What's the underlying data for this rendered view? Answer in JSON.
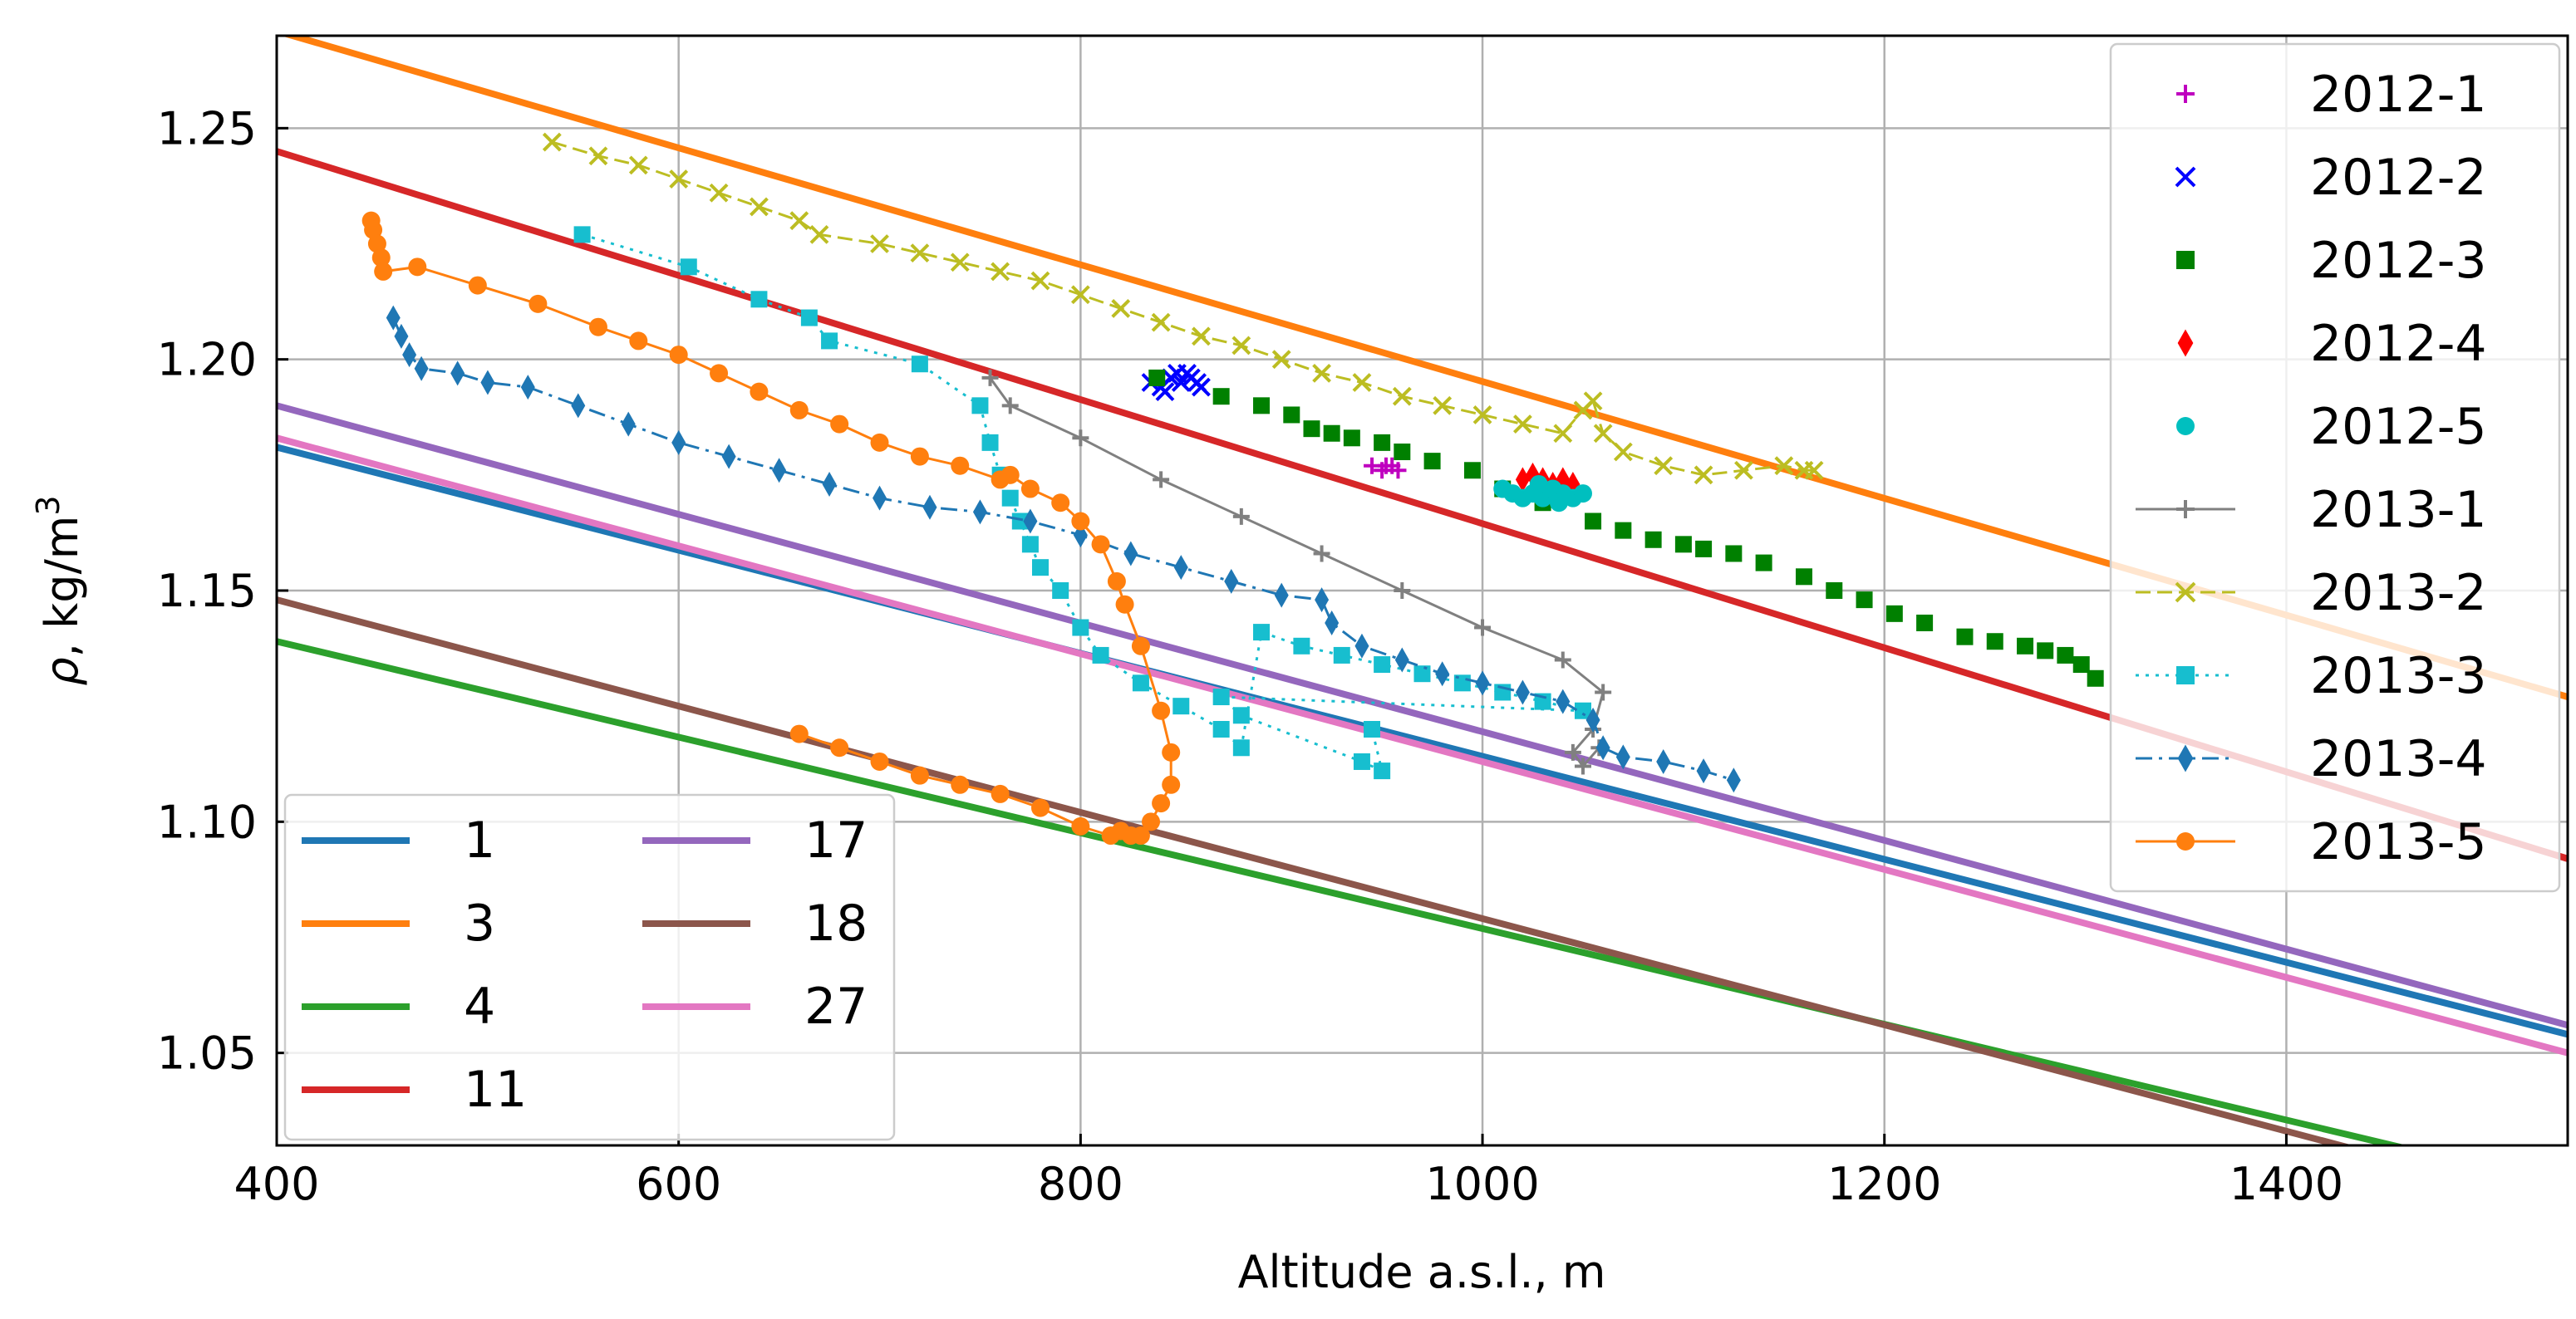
{
  "chart_data": {
    "type": "line",
    "xlabel": "Altitude a.s.l., m",
    "ylabel_prefix": "ρ",
    "ylabel_suffix": ", kg/m",
    "ylabel_sup": "3",
    "xlim": [
      400,
      1540
    ],
    "ylim": [
      1.03,
      1.27
    ],
    "grid": true,
    "x_ticks": [
      400,
      600,
      800,
      1000,
      1200,
      1400
    ],
    "y_ticks": [
      1.05,
      1.1,
      1.15,
      1.2,
      1.25
    ],
    "x_tick_labels": [
      "400",
      "600",
      "800",
      "1000",
      "1200",
      "1400"
    ],
    "y_tick_labels": [
      "1.05",
      "1.10",
      "1.15",
      "1.20",
      "1.25"
    ],
    "reference_lines": [
      {
        "name": "1",
        "color": "#1f77b4",
        "x": [
          400,
          1540
        ],
        "y": [
          1.181,
          1.054
        ]
      },
      {
        "name": "3",
        "color": "#ff7f0e",
        "x": [
          400,
          1540
        ],
        "y": [
          1.271,
          1.127
        ]
      },
      {
        "name": "4",
        "color": "#2ca02c",
        "x": [
          400,
          1540
        ],
        "y": [
          1.139,
          1.021
        ]
      },
      {
        "name": "11",
        "color": "#d62728",
        "x": [
          400,
          1540
        ],
        "y": [
          1.245,
          1.092
        ]
      },
      {
        "name": "17",
        "color": "#9467bd",
        "x": [
          400,
          1540
        ],
        "y": [
          1.19,
          1.056
        ]
      },
      {
        "name": "18",
        "color": "#8c564b",
        "x": [
          400,
          1540
        ],
        "y": [
          1.148,
          1.017
        ]
      },
      {
        "name": "27",
        "color": "#e377c2",
        "x": [
          400,
          1540
        ],
        "y": [
          1.183,
          1.05
        ]
      }
    ],
    "series": [
      {
        "name": "2012-1",
        "color": "#bf00bf",
        "marker": "plus",
        "line": "none",
        "x": [
          945,
          950,
          955,
          958,
          952
        ],
        "y": [
          1.177,
          1.176,
          1.177,
          1.176,
          1.177
        ]
      },
      {
        "name": "2012-2",
        "color": "#0000ff",
        "marker": "x",
        "line": "none",
        "x": [
          835,
          840,
          845,
          850,
          855,
          860,
          842,
          853,
          848,
          858
        ],
        "y": [
          1.195,
          1.194,
          1.196,
          1.195,
          1.196,
          1.194,
          1.193,
          1.197,
          1.197,
          1.195
        ]
      },
      {
        "name": "2012-3",
        "color": "#008000",
        "marker": "square",
        "line": "none",
        "x": [
          838,
          870,
          890,
          905,
          915,
          925,
          935,
          950,
          960,
          975,
          995,
          1010,
          1030,
          1055,
          1070,
          1085,
          1100,
          1110,
          1125,
          1140,
          1160,
          1175,
          1190,
          1205,
          1220,
          1240,
          1255,
          1270,
          1280,
          1290,
          1298,
          1305
        ],
        "y": [
          1.196,
          1.192,
          1.19,
          1.188,
          1.185,
          1.184,
          1.183,
          1.182,
          1.18,
          1.178,
          1.176,
          1.172,
          1.169,
          1.165,
          1.163,
          1.161,
          1.16,
          1.159,
          1.158,
          1.156,
          1.153,
          1.15,
          1.148,
          1.145,
          1.143,
          1.14,
          1.139,
          1.138,
          1.137,
          1.136,
          1.134,
          1.131
        ]
      },
      {
        "name": "2012-4",
        "color": "#ff0000",
        "marker": "diamond",
        "line": "none",
        "x": [
          1020,
          1025,
          1030,
          1035,
          1040,
          1045
        ],
        "y": [
          1.174,
          1.175,
          1.174,
          1.173,
          1.174,
          1.173
        ]
      },
      {
        "name": "2012-5",
        "color": "#00bfbf",
        "marker": "circle",
        "line": "none",
        "x": [
          1010,
          1015,
          1020,
          1025,
          1030,
          1035,
          1040,
          1045,
          1050,
          1028,
          1038
        ],
        "y": [
          1.172,
          1.171,
          1.17,
          1.171,
          1.17,
          1.172,
          1.171,
          1.17,
          1.171,
          1.173,
          1.169
        ]
      },
      {
        "name": "2013-1",
        "color": "#808080",
        "marker": "plus",
        "line": "solid",
        "x": [
          755,
          765,
          800,
          840,
          880,
          920,
          960,
          1000,
          1040,
          1060,
          1055,
          1045,
          1050,
          1058
        ],
        "y": [
          1.196,
          1.19,
          1.183,
          1.174,
          1.166,
          1.158,
          1.15,
          1.142,
          1.135,
          1.128,
          1.12,
          1.115,
          1.112,
          1.116
        ]
      },
      {
        "name": "2013-2",
        "color": "#bcbd22",
        "marker": "x",
        "line": "dashed",
        "x": [
          537,
          560,
          580,
          600,
          620,
          640,
          660,
          670,
          700,
          720,
          740,
          760,
          780,
          800,
          820,
          840,
          860,
          880,
          900,
          920,
          940,
          960,
          980,
          1000,
          1020,
          1040,
          1050,
          1055,
          1060,
          1070,
          1090,
          1110,
          1130,
          1150,
          1160,
          1165
        ],
        "y": [
          1.247,
          1.244,
          1.242,
          1.239,
          1.236,
          1.233,
          1.23,
          1.227,
          1.225,
          1.223,
          1.221,
          1.219,
          1.217,
          1.214,
          1.211,
          1.208,
          1.205,
          1.203,
          1.2,
          1.197,
          1.195,
          1.192,
          1.19,
          1.188,
          1.186,
          1.184,
          1.189,
          1.191,
          1.184,
          1.18,
          1.177,
          1.175,
          1.176,
          1.177,
          1.176,
          1.176
        ]
      },
      {
        "name": "2013-3",
        "color": "#17becf",
        "marker": "square",
        "line": "dotted",
        "x": [
          552,
          605,
          640,
          665,
          675,
          720,
          750,
          755,
          760,
          765,
          770,
          775,
          780,
          790,
          800,
          810,
          830,
          850,
          870,
          880,
          890,
          910,
          930,
          950,
          970,
          990,
          1010,
          1030,
          1050,
          870,
          880,
          940,
          950,
          945
        ],
        "y": [
          1.227,
          1.22,
          1.213,
          1.209,
          1.204,
          1.199,
          1.19,
          1.182,
          1.175,
          1.17,
          1.165,
          1.16,
          1.155,
          1.15,
          1.142,
          1.136,
          1.13,
          1.125,
          1.12,
          1.116,
          1.141,
          1.138,
          1.136,
          1.134,
          1.132,
          1.13,
          1.128,
          1.126,
          1.124,
          1.127,
          1.123,
          1.113,
          1.111,
          1.12
        ]
      },
      {
        "name": "2013-4",
        "color": "#1f77b4",
        "marker": "diamond",
        "line": "dashdot",
        "x": [
          458,
          462,
          466,
          472,
          490,
          505,
          525,
          550,
          575,
          600,
          625,
          650,
          675,
          700,
          725,
          750,
          775,
          800,
          825,
          850,
          875,
          900,
          920,
          925,
          940,
          960,
          980,
          1000,
          1020,
          1040,
          1055,
          1060,
          1070,
          1090,
          1110,
          1125
        ],
        "y": [
          1.209,
          1.205,
          1.201,
          1.198,
          1.197,
          1.195,
          1.194,
          1.19,
          1.186,
          1.182,
          1.179,
          1.176,
          1.173,
          1.17,
          1.168,
          1.167,
          1.165,
          1.162,
          1.158,
          1.155,
          1.152,
          1.149,
          1.148,
          1.143,
          1.138,
          1.135,
          1.132,
          1.13,
          1.128,
          1.126,
          1.122,
          1.116,
          1.114,
          1.113,
          1.111,
          1.109
        ]
      },
      {
        "name": "2013-5",
        "color": "#ff7f0e",
        "marker": "circle",
        "line": "solid",
        "x": [
          447,
          448,
          450,
          452,
          453,
          470,
          500,
          530,
          560,
          580,
          600,
          620,
          640,
          660,
          680,
          700,
          720,
          740,
          760,
          765,
          775,
          790,
          800,
          810,
          818,
          822,
          830,
          840,
          845,
          845,
          840,
          835,
          830,
          825,
          820,
          815,
          800,
          780,
          760,
          740,
          720,
          700,
          680,
          660
        ],
        "y": [
          1.23,
          1.228,
          1.225,
          1.222,
          1.219,
          1.22,
          1.216,
          1.212,
          1.207,
          1.204,
          1.201,
          1.197,
          1.193,
          1.189,
          1.186,
          1.182,
          1.179,
          1.177,
          1.174,
          1.175,
          1.172,
          1.169,
          1.165,
          1.16,
          1.152,
          1.147,
          1.138,
          1.124,
          1.115,
          1.108,
          1.104,
          1.1,
          1.097,
          1.097,
          1.098,
          1.097,
          1.099,
          1.103,
          1.106,
          1.108,
          1.11,
          1.113,
          1.116,
          1.119
        ]
      }
    ],
    "legend_right_order": [
      "2012-1",
      "2012-2",
      "2012-3",
      "2012-4",
      "2012-5",
      "2013-1",
      "2013-2",
      "2013-3",
      "2013-4",
      "2013-5"
    ],
    "legend_left_columns": [
      [
        "1",
        "3",
        "4",
        "11"
      ],
      [
        "17",
        "18",
        "27"
      ]
    ],
    "legend_right_placement": "top-right",
    "legend_left_placement": "bottom-left"
  }
}
